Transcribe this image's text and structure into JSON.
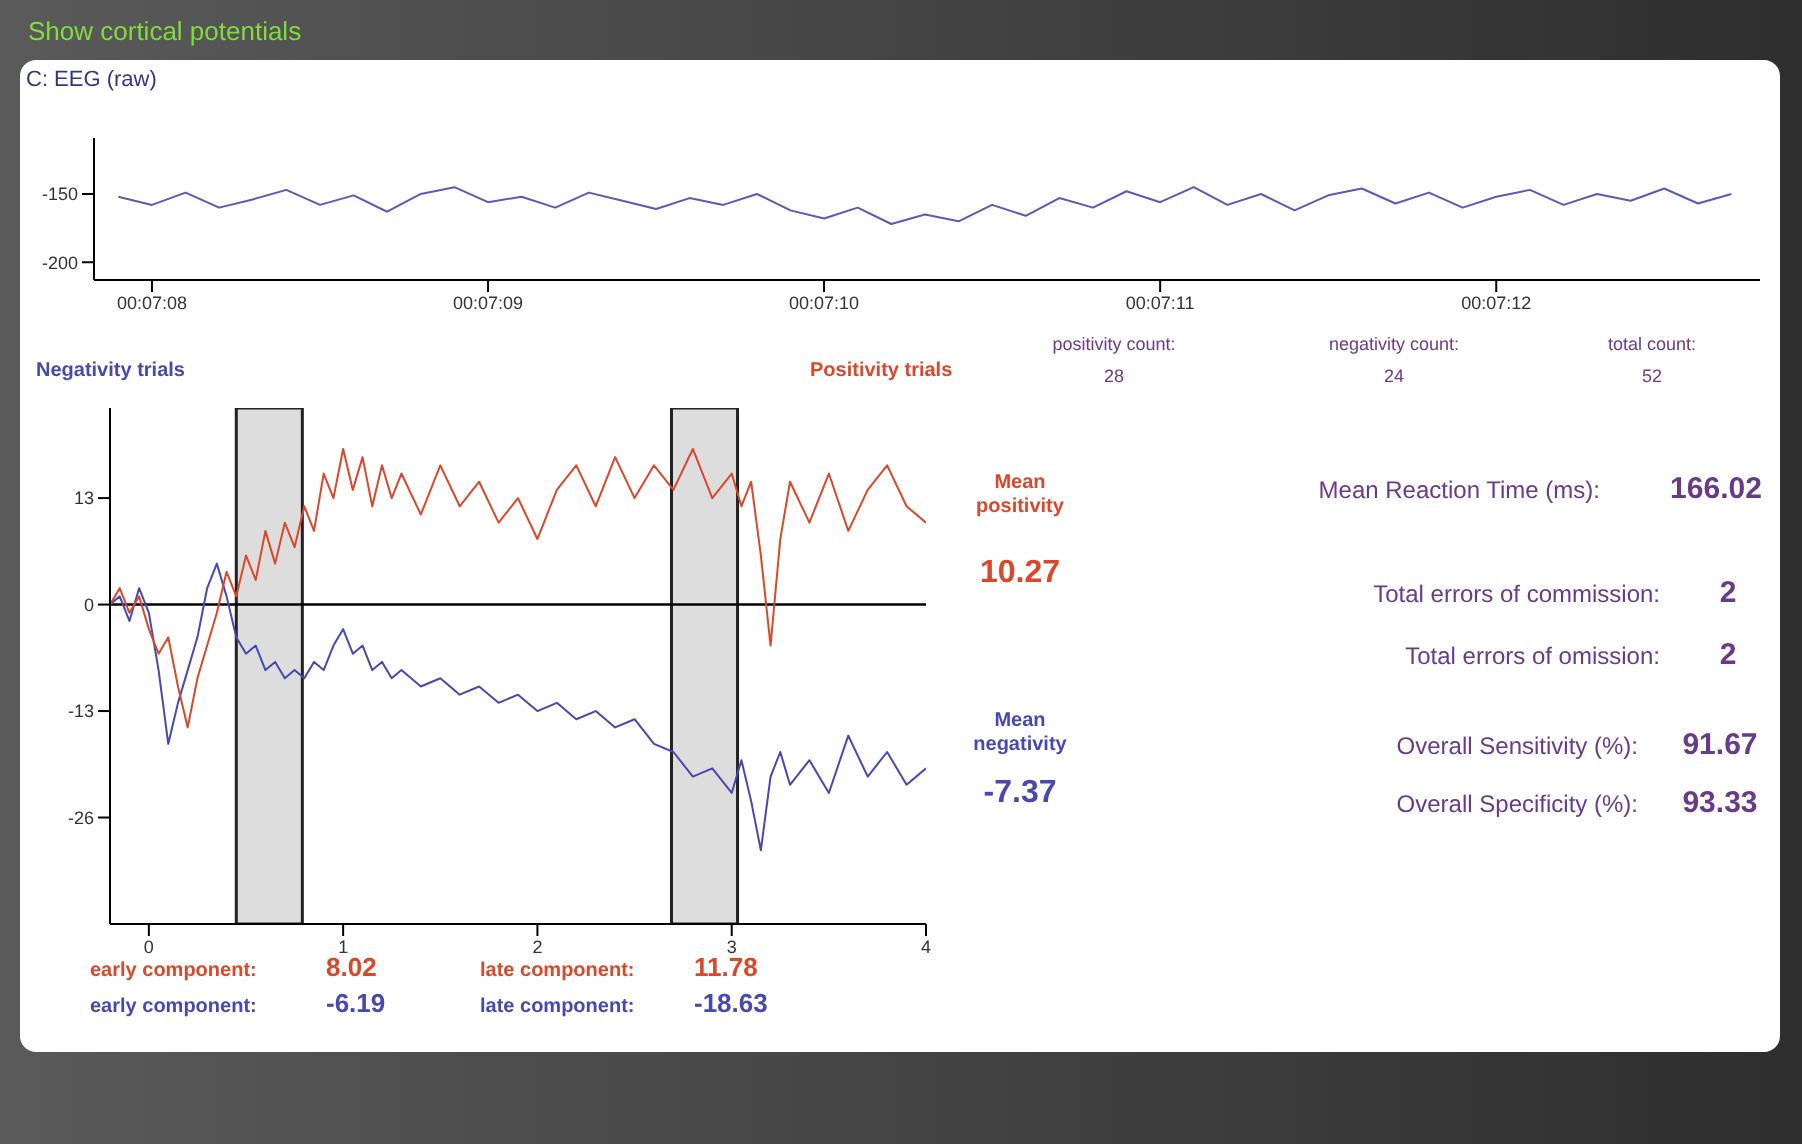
{
  "chart_data": [
    {
      "type": "line",
      "title": "Show cortical potentials",
      "subtitle": "C: EEG (raw)",
      "x": [
        0.1188611,
        0.1188889,
        0.1189167,
        0.1189444,
        0.1189722,
        0.119,
        0.1190278,
        0.1190556,
        0.1190833,
        0.1191111,
        0.1191389,
        0.1191667,
        0.1191944,
        0.1192222,
        0.11925,
        0.1192778,
        0.1193056,
        0.1193333,
        0.1193611,
        0.1193889,
        0.1194167,
        0.1194444,
        0.1194722,
        0.1195,
        0.1195278,
        0.1195556,
        0.1195833,
        0.1196111,
        0.1196389,
        0.1196667,
        0.1196944,
        0.1197222,
        0.11975,
        0.1197778,
        0.1198056,
        0.1198333,
        0.1198611,
        0.1198889,
        0.1199167,
        0.1199444,
        0.1199722,
        0.12,
        0.1200278,
        0.1200556,
        0.1200833,
        0.1201111,
        0.1201389,
        0.1201667,
        0.1201944
      ],
      "series": [
        {
          "color": "#5a5ab8",
          "values": [
            -152,
            -158,
            -149,
            -160,
            -154,
            -147,
            -158,
            -151,
            -163,
            -150,
            -145,
            -156,
            -152,
            -160,
            -149,
            -155,
            -161,
            -153,
            -158,
            -150,
            -162,
            -168,
            -160,
            -172,
            -165,
            -170,
            -158,
            -166,
            -153,
            -160,
            -148,
            -156,
            -145,
            -158,
            -150,
            -162,
            -151,
            -146,
            -157,
            -149,
            -160,
            -152,
            -147,
            -158,
            -150,
            -155,
            -146,
            -157,
            -150
          ]
        }
      ],
      "xlim": [
        0.118841,
        0.120218
      ],
      "xticks": [
        {
          "value": 0.1188889,
          "label": "00:07:08"
        },
        {
          "value": 0.1191667,
          "label": "00:07:09"
        },
        {
          "value": 0.1194444,
          "label": "00:07:10"
        },
        {
          "value": 0.1197222,
          "label": "00:07:11"
        },
        {
          "value": 0.12,
          "label": "00:07:12"
        }
      ],
      "ylim": [
        -213,
        -109
      ],
      "yticks": [
        -200,
        -150
      ]
    },
    {
      "type": "line",
      "x": [
        -0.2,
        -0.15,
        -0.1,
        -0.05,
        0,
        0.05,
        0.1,
        0.15,
        0.2,
        0.25,
        0.3,
        0.35,
        0.4,
        0.45,
        0.5,
        0.55,
        0.6,
        0.65,
        0.7,
        0.75,
        0.8,
        0.85,
        0.9,
        0.95,
        1,
        1.05,
        1.1,
        1.15,
        1.2,
        1.25,
        1.3,
        1.4,
        1.5,
        1.6,
        1.7,
        1.8,
        1.9,
        2,
        2.1,
        2.2,
        2.3,
        2.4,
        2.5,
        2.6,
        2.7,
        2.8,
        2.9,
        3,
        3.05,
        3.1,
        3.15,
        3.2,
        3.25,
        3.3,
        3.4,
        3.5,
        3.6,
        3.7,
        3.8,
        3.9,
        4
      ],
      "series": [
        {
          "name": "Negativity trials",
          "color": "#4848b0",
          "values": [
            0,
            1,
            -2,
            2,
            -1,
            -8,
            -17,
            -12,
            -8,
            -4,
            2,
            5,
            1,
            -4,
            -6,
            -5,
            -8,
            -7,
            -9,
            -8,
            -9,
            -7,
            -8,
            -5,
            -3,
            -6,
            -5,
            -8,
            -7,
            -9,
            -8,
            -10,
            -9,
            -11,
            -10,
            -12,
            -11,
            -13,
            -12,
            -14,
            -13,
            -15,
            -14,
            -17,
            -18,
            -21,
            -20,
            -23,
            -19,
            -24,
            -30,
            -21,
            -18,
            -22,
            -19,
            -23,
            -16,
            -21,
            -18,
            -22,
            -20
          ]
        },
        {
          "name": "Positivity trials",
          "color": "#d9482a",
          "values": [
            0,
            2,
            -1,
            1,
            -3,
            -6,
            -4,
            -10,
            -15,
            -9,
            -5,
            -1,
            4,
            1,
            6,
            3,
            9,
            5,
            10,
            7,
            12,
            9,
            16,
            13,
            19,
            14,
            18,
            12,
            17,
            13,
            16,
            11,
            17,
            12,
            15,
            10,
            13,
            8,
            14,
            17,
            12,
            18,
            13,
            17,
            14,
            19,
            13,
            16,
            12,
            15,
            6,
            -5,
            8,
            15,
            10,
            16,
            9,
            14,
            17,
            12,
            10
          ]
        }
      ],
      "xlim": [
        -0.2,
        4
      ],
      "xticks": [
        0,
        1,
        2,
        3,
        4
      ],
      "ylim": [
        -39,
        24
      ],
      "yticks": [
        -26,
        -13,
        0,
        13
      ],
      "ref_lines": [
        {
          "axis": "y",
          "value": 0,
          "color": "#000000"
        }
      ],
      "bands": [
        {
          "axis": "x",
          "from": 0.45,
          "to": 0.79,
          "color": "#d4d4d4"
        },
        {
          "axis": "x",
          "from": 2.69,
          "to": 3.03,
          "color": "#d4d4d4"
        }
      ],
      "annotations": [
        "early component:",
        "8.02",
        "late component:",
        "11.78",
        "early component:",
        "-6.19",
        "late component:",
        "-18.63",
        "Mean positivity",
        "10.27",
        "Mean negativity",
        "-7.37"
      ]
    },
    {
      "type": "other",
      "annotations": [
        "positivity count:",
        "28",
        "negativity count:",
        "24",
        "total count:",
        "52",
        "Mean Reaction Time (ms):",
        "166.02",
        "Total errors of commission:",
        "2",
        "Total errors of omission:",
        "2",
        "Overall Sensitivity (%):",
        "91.67",
        "Overall Specificity (%):",
        "93.33"
      ]
    }
  ]
}
